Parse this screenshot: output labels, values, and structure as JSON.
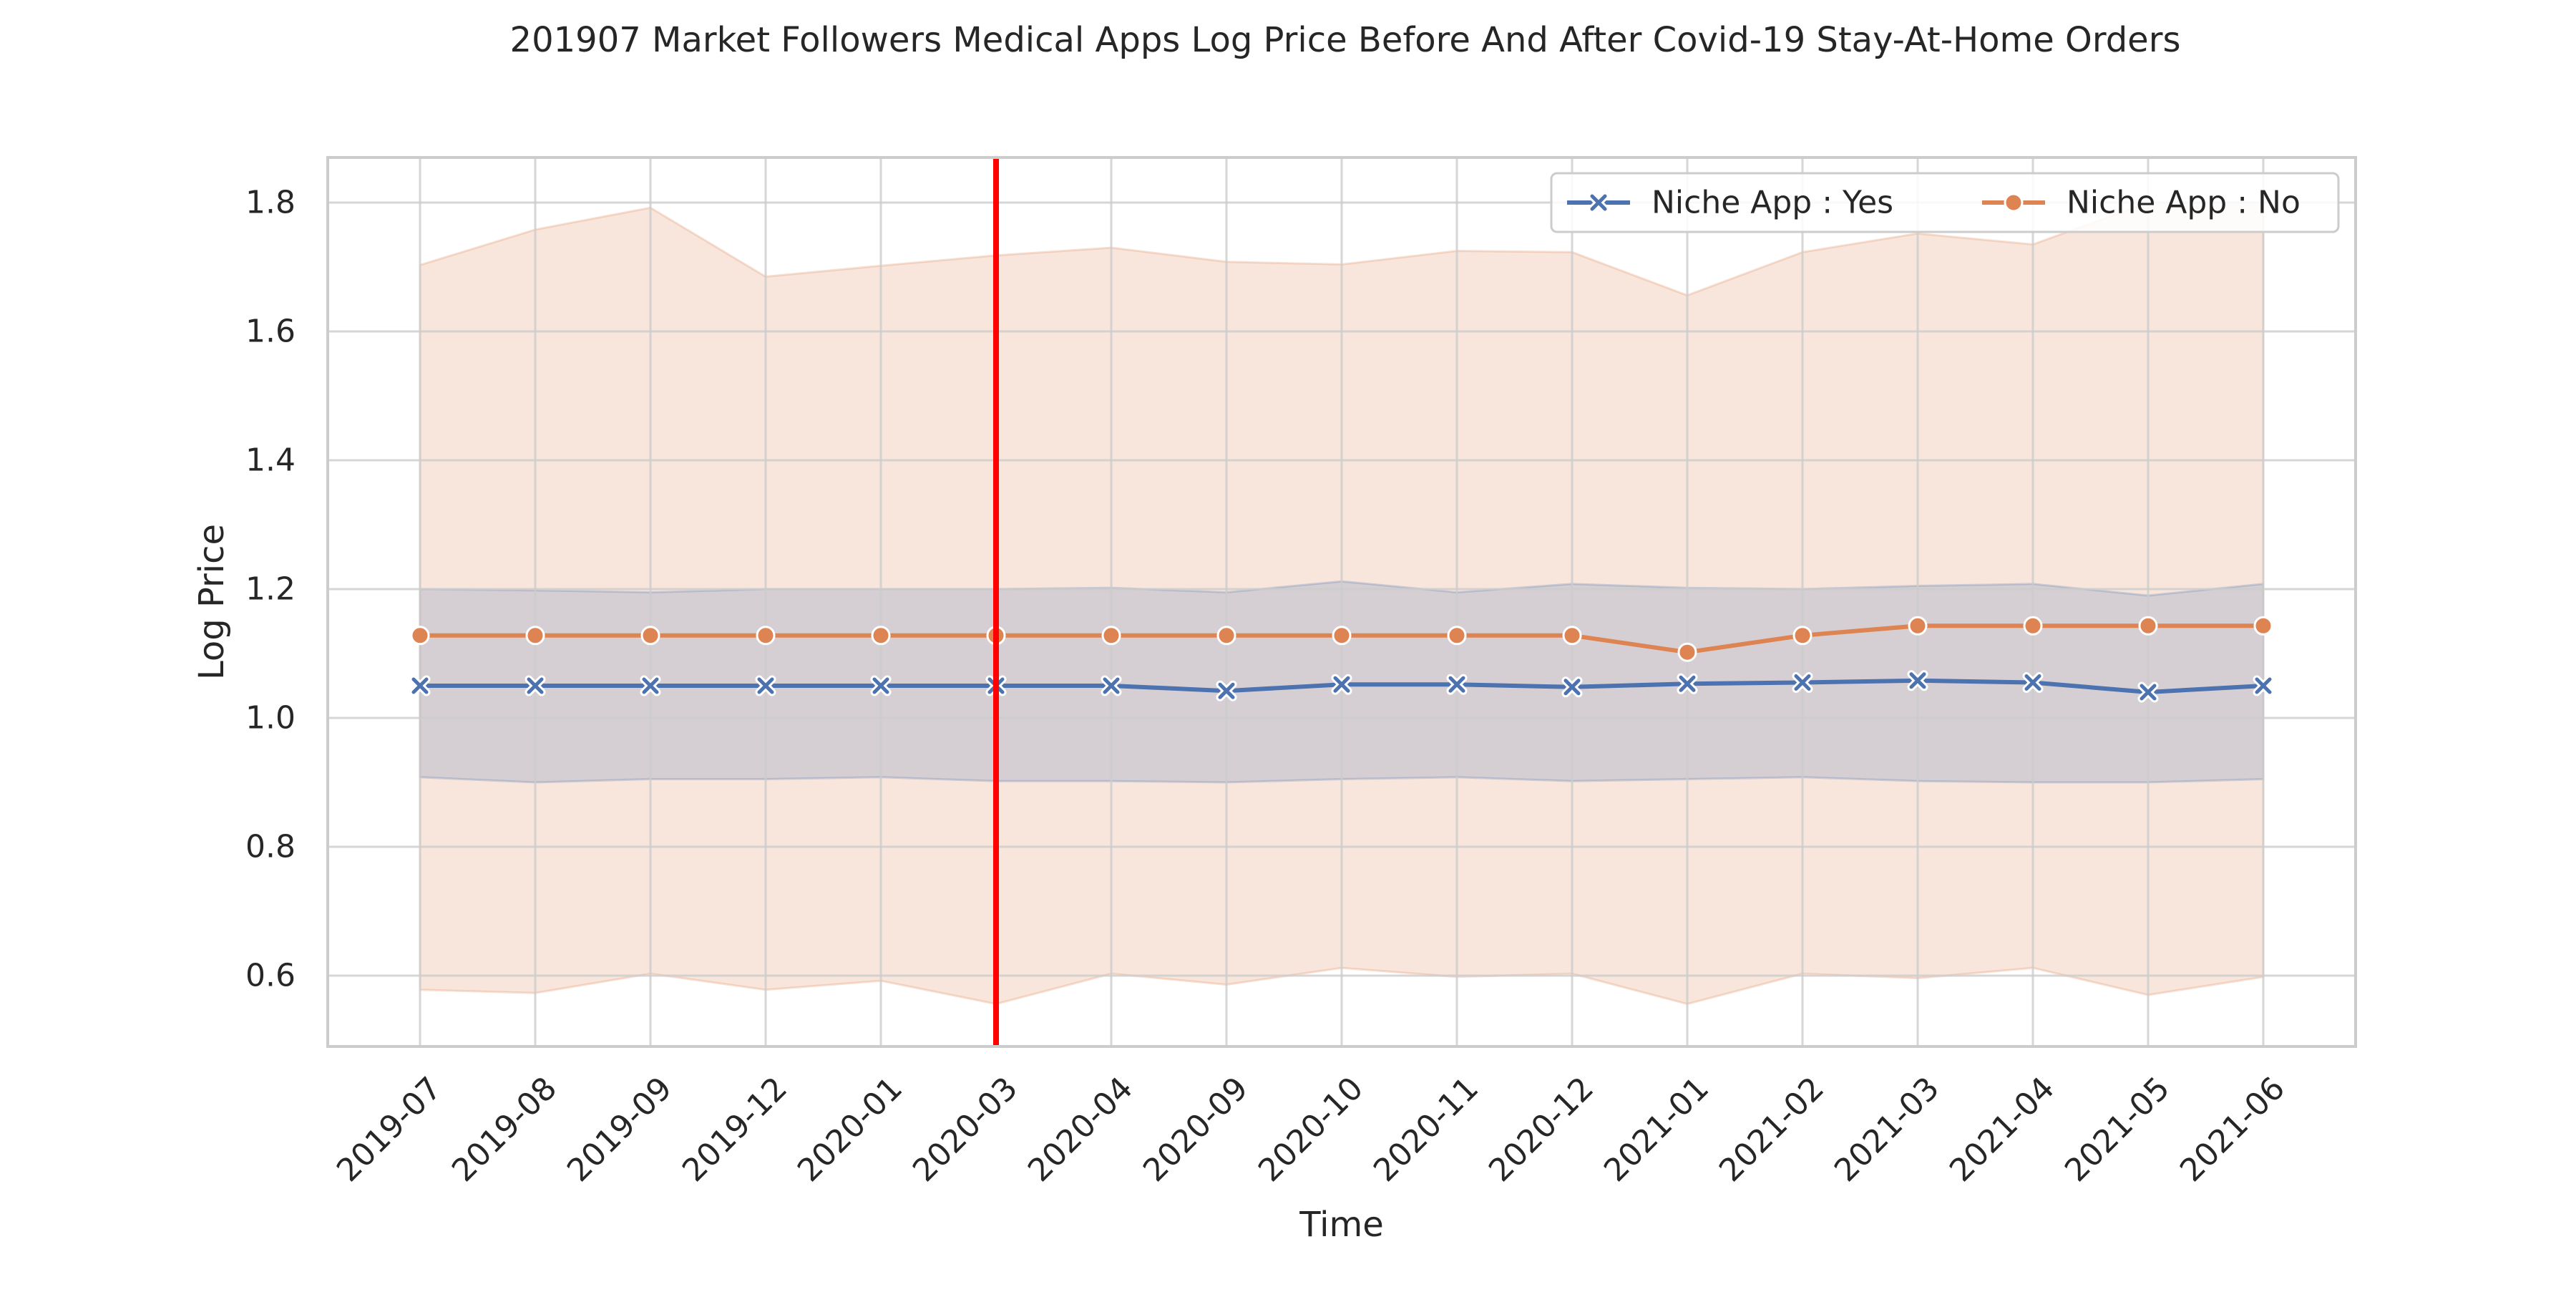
{
  "chart_data": {
    "type": "line",
    "title": "201907 Market Followers Medical Apps Log Price Before And After Covid-19 Stay-At-Home Orders",
    "xlabel": "Time",
    "ylabel": "Log Price",
    "categories": [
      "2019-07",
      "2019-08",
      "2019-09",
      "2019-12",
      "2020-01",
      "2020-03",
      "2020-04",
      "2020-09",
      "2020-10",
      "2020-11",
      "2020-12",
      "2021-01",
      "2021-02",
      "2021-03",
      "2021-04",
      "2021-05",
      "2021-06"
    ],
    "ylim": [
      0.49,
      1.87
    ],
    "yticks": [
      0.6,
      0.8,
      1.0,
      1.2,
      1.4,
      1.6,
      1.8
    ],
    "ytick_labels": [
      "0.6",
      "0.8",
      "1.0",
      "1.2",
      "1.4",
      "1.6",
      "1.8"
    ],
    "grid": true,
    "legend_position": "top-right",
    "vline": {
      "x": "2020-03",
      "color": "#ff0000"
    },
    "series": [
      {
        "name": "Niche App : Yes",
        "color": "#4c72b0",
        "marker": "x",
        "values": [
          1.05,
          1.05,
          1.05,
          1.05,
          1.05,
          1.05,
          1.05,
          1.042,
          1.052,
          1.052,
          1.048,
          1.053,
          1.055,
          1.058,
          1.055,
          1.04,
          1.05
        ],
        "ci_upper": [
          1.2,
          1.198,
          1.195,
          1.2,
          1.2,
          1.2,
          1.202,
          1.195,
          1.212,
          1.195,
          1.208,
          1.202,
          1.2,
          1.205,
          1.208,
          1.19,
          1.208
        ],
        "ci_lower": [
          0.908,
          0.9,
          0.905,
          0.905,
          0.908,
          0.902,
          0.902,
          0.9,
          0.905,
          0.908,
          0.902,
          0.905,
          0.908,
          0.902,
          0.9,
          0.9,
          0.905
        ]
      },
      {
        "name": "Niche App : No",
        "color": "#dd8452",
        "marker": "o",
        "values": [
          1.128,
          1.128,
          1.128,
          1.128,
          1.128,
          1.128,
          1.128,
          1.128,
          1.128,
          1.128,
          1.128,
          1.102,
          1.128,
          1.143,
          1.143,
          1.143,
          1.143
        ],
        "ci_upper": [
          1.703,
          1.758,
          1.792,
          1.685,
          1.702,
          1.718,
          1.73,
          1.708,
          1.704,
          1.725,
          1.723,
          1.656,
          1.723,
          1.752,
          1.735,
          1.8,
          1.8
        ],
        "ci_lower": [
          0.578,
          0.573,
          0.603,
          0.578,
          0.592,
          0.556,
          0.603,
          0.586,
          0.612,
          0.598,
          0.603,
          0.556,
          0.603,
          0.596,
          0.612,
          0.57,
          0.598
        ]
      }
    ]
  }
}
